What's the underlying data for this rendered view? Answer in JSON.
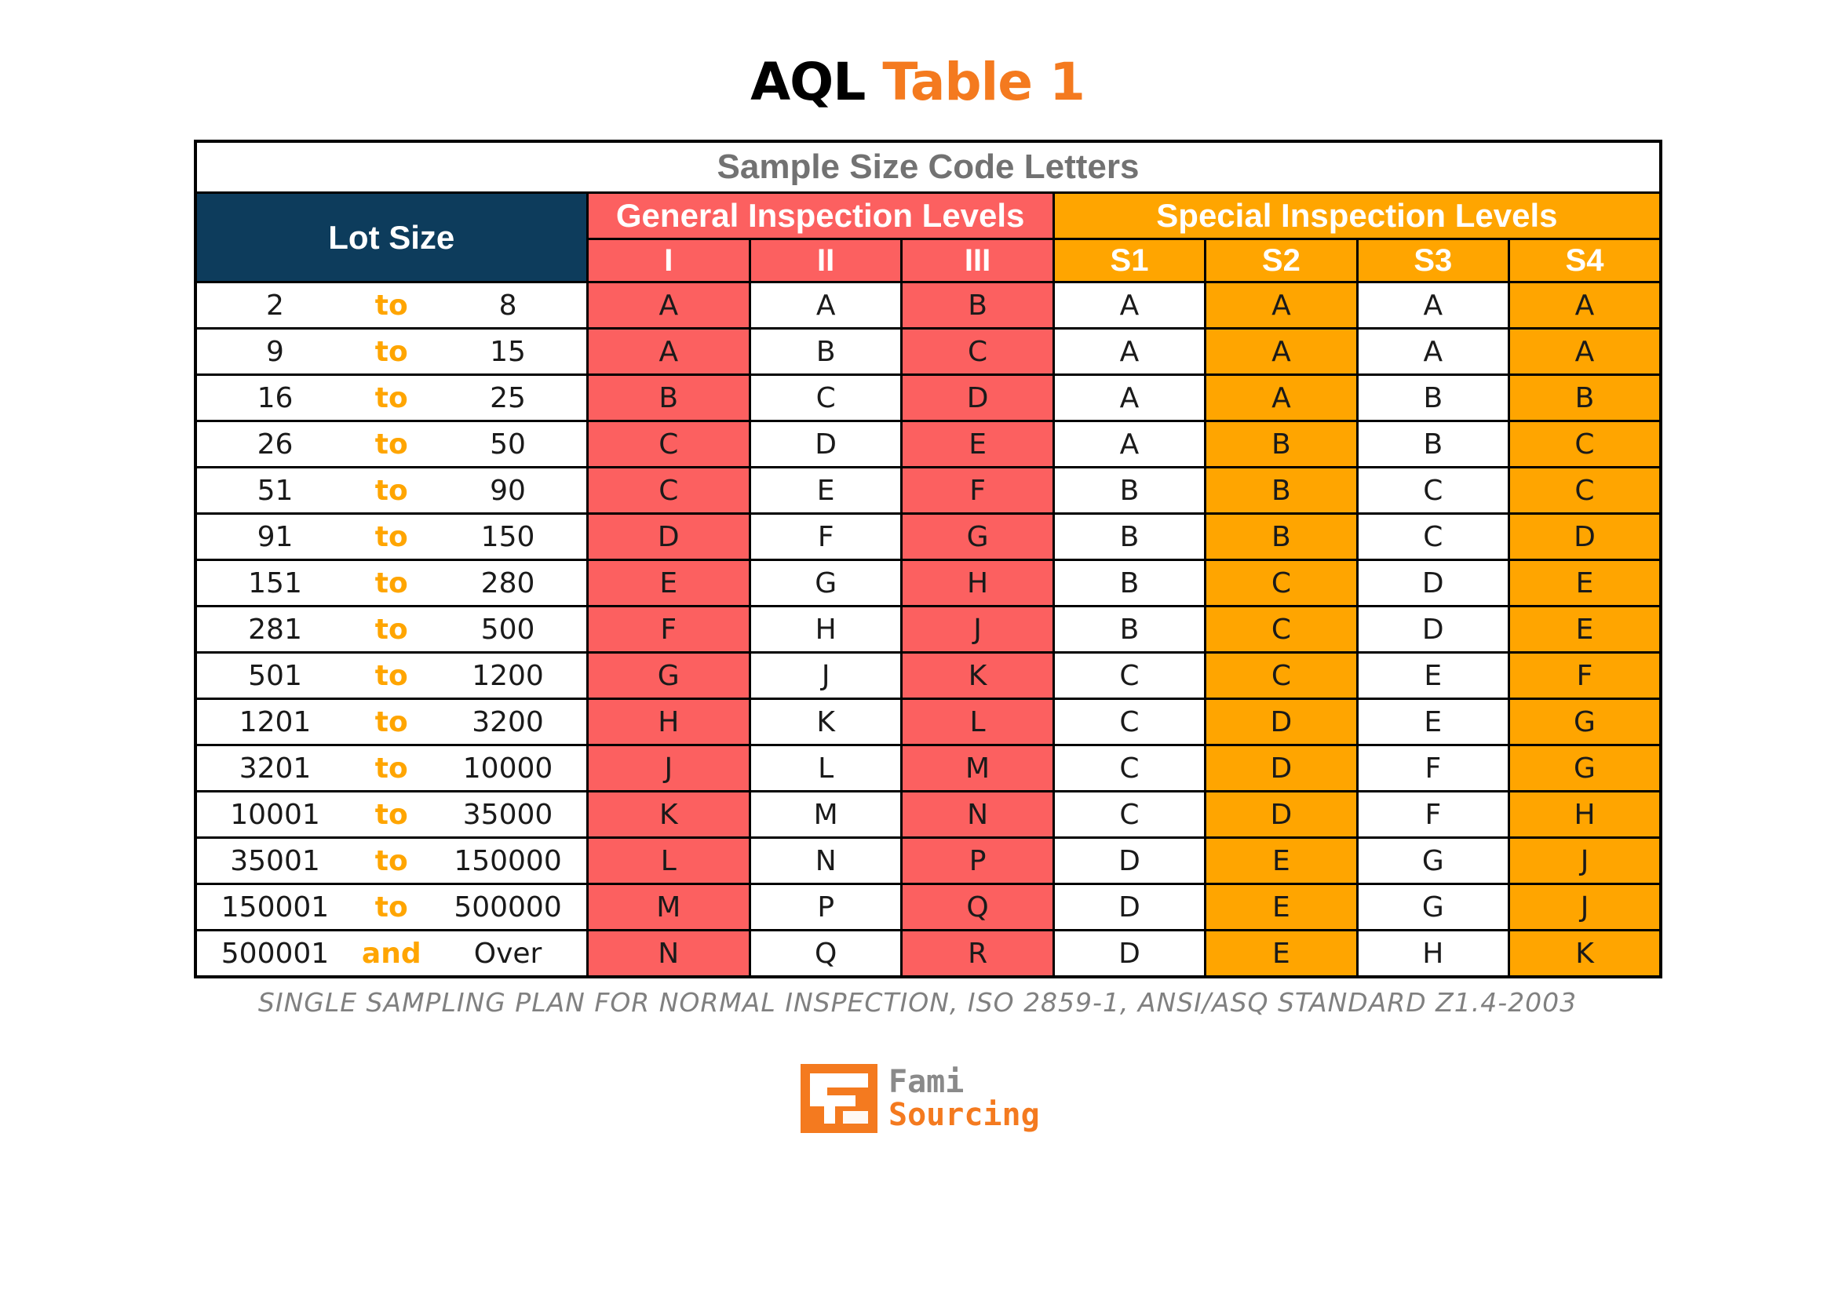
{
  "title": {
    "part1": "AQL",
    "part2": "Table 1"
  },
  "table": {
    "caption": "Sample Size Code Letters",
    "lot_size_header": "Lot Size",
    "general_header": "General Inspection Levels",
    "special_header": "Special Inspection Levels",
    "general_levels": [
      "I",
      "II",
      "III"
    ],
    "special_levels": [
      "S1",
      "S2",
      "S3",
      "S4"
    ],
    "rows": [
      {
        "from": "2",
        "sep": "to",
        "to": "8",
        "I": "A",
        "II": "A",
        "III": "B",
        "S1": "A",
        "S2": "A",
        "S3": "A",
        "S4": "A"
      },
      {
        "from": "9",
        "sep": "to",
        "to": "15",
        "I": "A",
        "II": "B",
        "III": "C",
        "S1": "A",
        "S2": "A",
        "S3": "A",
        "S4": "A"
      },
      {
        "from": "16",
        "sep": "to",
        "to": "25",
        "I": "B",
        "II": "C",
        "III": "D",
        "S1": "A",
        "S2": "A",
        "S3": "B",
        "S4": "B"
      },
      {
        "from": "26",
        "sep": "to",
        "to": "50",
        "I": "C",
        "II": "D",
        "III": "E",
        "S1": "A",
        "S2": "B",
        "S3": "B",
        "S4": "C"
      },
      {
        "from": "51",
        "sep": "to",
        "to": "90",
        "I": "C",
        "II": "E",
        "III": "F",
        "S1": "B",
        "S2": "B",
        "S3": "C",
        "S4": "C"
      },
      {
        "from": "91",
        "sep": "to",
        "to": "150",
        "I": "D",
        "II": "F",
        "III": "G",
        "S1": "B",
        "S2": "B",
        "S3": "C",
        "S4": "D"
      },
      {
        "from": "151",
        "sep": "to",
        "to": "280",
        "I": "E",
        "II": "G",
        "III": "H",
        "S1": "B",
        "S2": "C",
        "S3": "D",
        "S4": "E"
      },
      {
        "from": "281",
        "sep": "to",
        "to": "500",
        "I": "F",
        "II": "H",
        "III": "J",
        "S1": "B",
        "S2": "C",
        "S3": "D",
        "S4": "E"
      },
      {
        "from": "501",
        "sep": "to",
        "to": "1200",
        "I": "G",
        "II": "J",
        "III": "K",
        "S1": "C",
        "S2": "C",
        "S3": "E",
        "S4": "F"
      },
      {
        "from": "1201",
        "sep": "to",
        "to": "3200",
        "I": "H",
        "II": "K",
        "III": "L",
        "S1": "C",
        "S2": "D",
        "S3": "E",
        "S4": "G"
      },
      {
        "from": "3201",
        "sep": "to",
        "to": "10000",
        "I": "J",
        "II": "L",
        "III": "M",
        "S1": "C",
        "S2": "D",
        "S3": "F",
        "S4": "G"
      },
      {
        "from": "10001",
        "sep": "to",
        "to": "35000",
        "I": "K",
        "II": "M",
        "III": "N",
        "S1": "C",
        "S2": "D",
        "S3": "F",
        "S4": "H"
      },
      {
        "from": "35001",
        "sep": "to",
        "to": "150000",
        "I": "L",
        "II": "N",
        "III": "P",
        "S1": "D",
        "S2": "E",
        "S3": "G",
        "S4": "J"
      },
      {
        "from": "150001",
        "sep": "to",
        "to": "500000",
        "I": "M",
        "II": "P",
        "III": "Q",
        "S1": "D",
        "S2": "E",
        "S3": "G",
        "S4": "J"
      },
      {
        "from": "500001",
        "sep": "and",
        "to": "Over",
        "I": "N",
        "II": "Q",
        "III": "R",
        "S1": "D",
        "S2": "E",
        "S3": "H",
        "S4": "K"
      }
    ]
  },
  "footnote": "SINGLE SAMPLING PLAN FOR NORMAL INSPECTION, ISO 2859-1, ANSI/ASQ STANDARD Z1.4-2003",
  "logo": {
    "line1": "Fami",
    "line2": "Sourcing",
    "icon": "fami-sourcing-logo-icon"
  },
  "colors": {
    "title_accent": "#f47a1f",
    "lot_header": "#0d3c5c",
    "general_red": "#fc6060",
    "special_orange": "#ffa500",
    "caption_gray": "#727272"
  }
}
